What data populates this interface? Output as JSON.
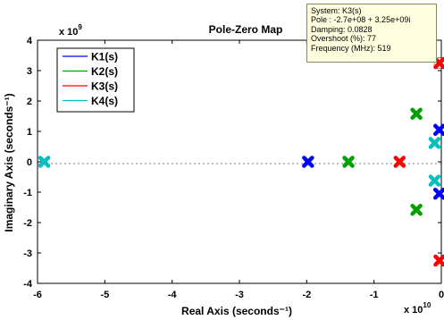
{
  "chart_data": {
    "type": "scatter",
    "title": "Pole-Zero Map",
    "xlabel": "Real Axis (seconds⁻¹)",
    "ylabel": "Imaginary Axis (seconds⁻¹)",
    "x_exponent": "x 10",
    "x_exponent_power": "10",
    "y_exponent": "x 10",
    "y_exponent_power": "9",
    "xlim": [
      -6,
      0
    ],
    "ylim": [
      -4,
      4
    ],
    "xticks": [
      "-6",
      "-5",
      "-4",
      "-3",
      "-2",
      "-1",
      "0"
    ],
    "yticks": [
      "-4",
      "-3",
      "-2",
      "-1",
      "0",
      "1",
      "2",
      "3",
      "4"
    ],
    "grid": false,
    "legend_position": "top-left",
    "series": [
      {
        "name": "K1(s)",
        "color": "#0000ff",
        "points": [
          [
            -1.98,
            0
          ],
          [
            -0.03,
            1.05
          ],
          [
            -0.03,
            -1.05
          ]
        ]
      },
      {
        "name": "K2(s)",
        "color": "#00a000",
        "points": [
          [
            -1.38,
            0
          ],
          [
            -0.37,
            1.58
          ],
          [
            -0.37,
            -1.58
          ]
        ]
      },
      {
        "name": "K3(s)",
        "color": "#ff0000",
        "points": [
          [
            -0.62,
            0
          ],
          [
            -0.027,
            3.25
          ],
          [
            -0.027,
            -3.25
          ]
        ]
      },
      {
        "name": "K4(s)",
        "color": "#00c0c0",
        "points": [
          [
            -5.9,
            0
          ],
          [
            -0.1,
            0.62
          ],
          [
            -0.1,
            -0.62
          ]
        ]
      }
    ],
    "selected_point": {
      "series": "K3(s)",
      "x": -0.027,
      "y": 3.25
    }
  },
  "datatip": {
    "system": "System: K3(s)",
    "pole": "Pole : -2.7e+08 + 3.25e+09i",
    "damping": "Damping: 0.0828",
    "overshoot": "Overshoot (%): 77",
    "frequency": "Frequency (MHz): 519"
  }
}
